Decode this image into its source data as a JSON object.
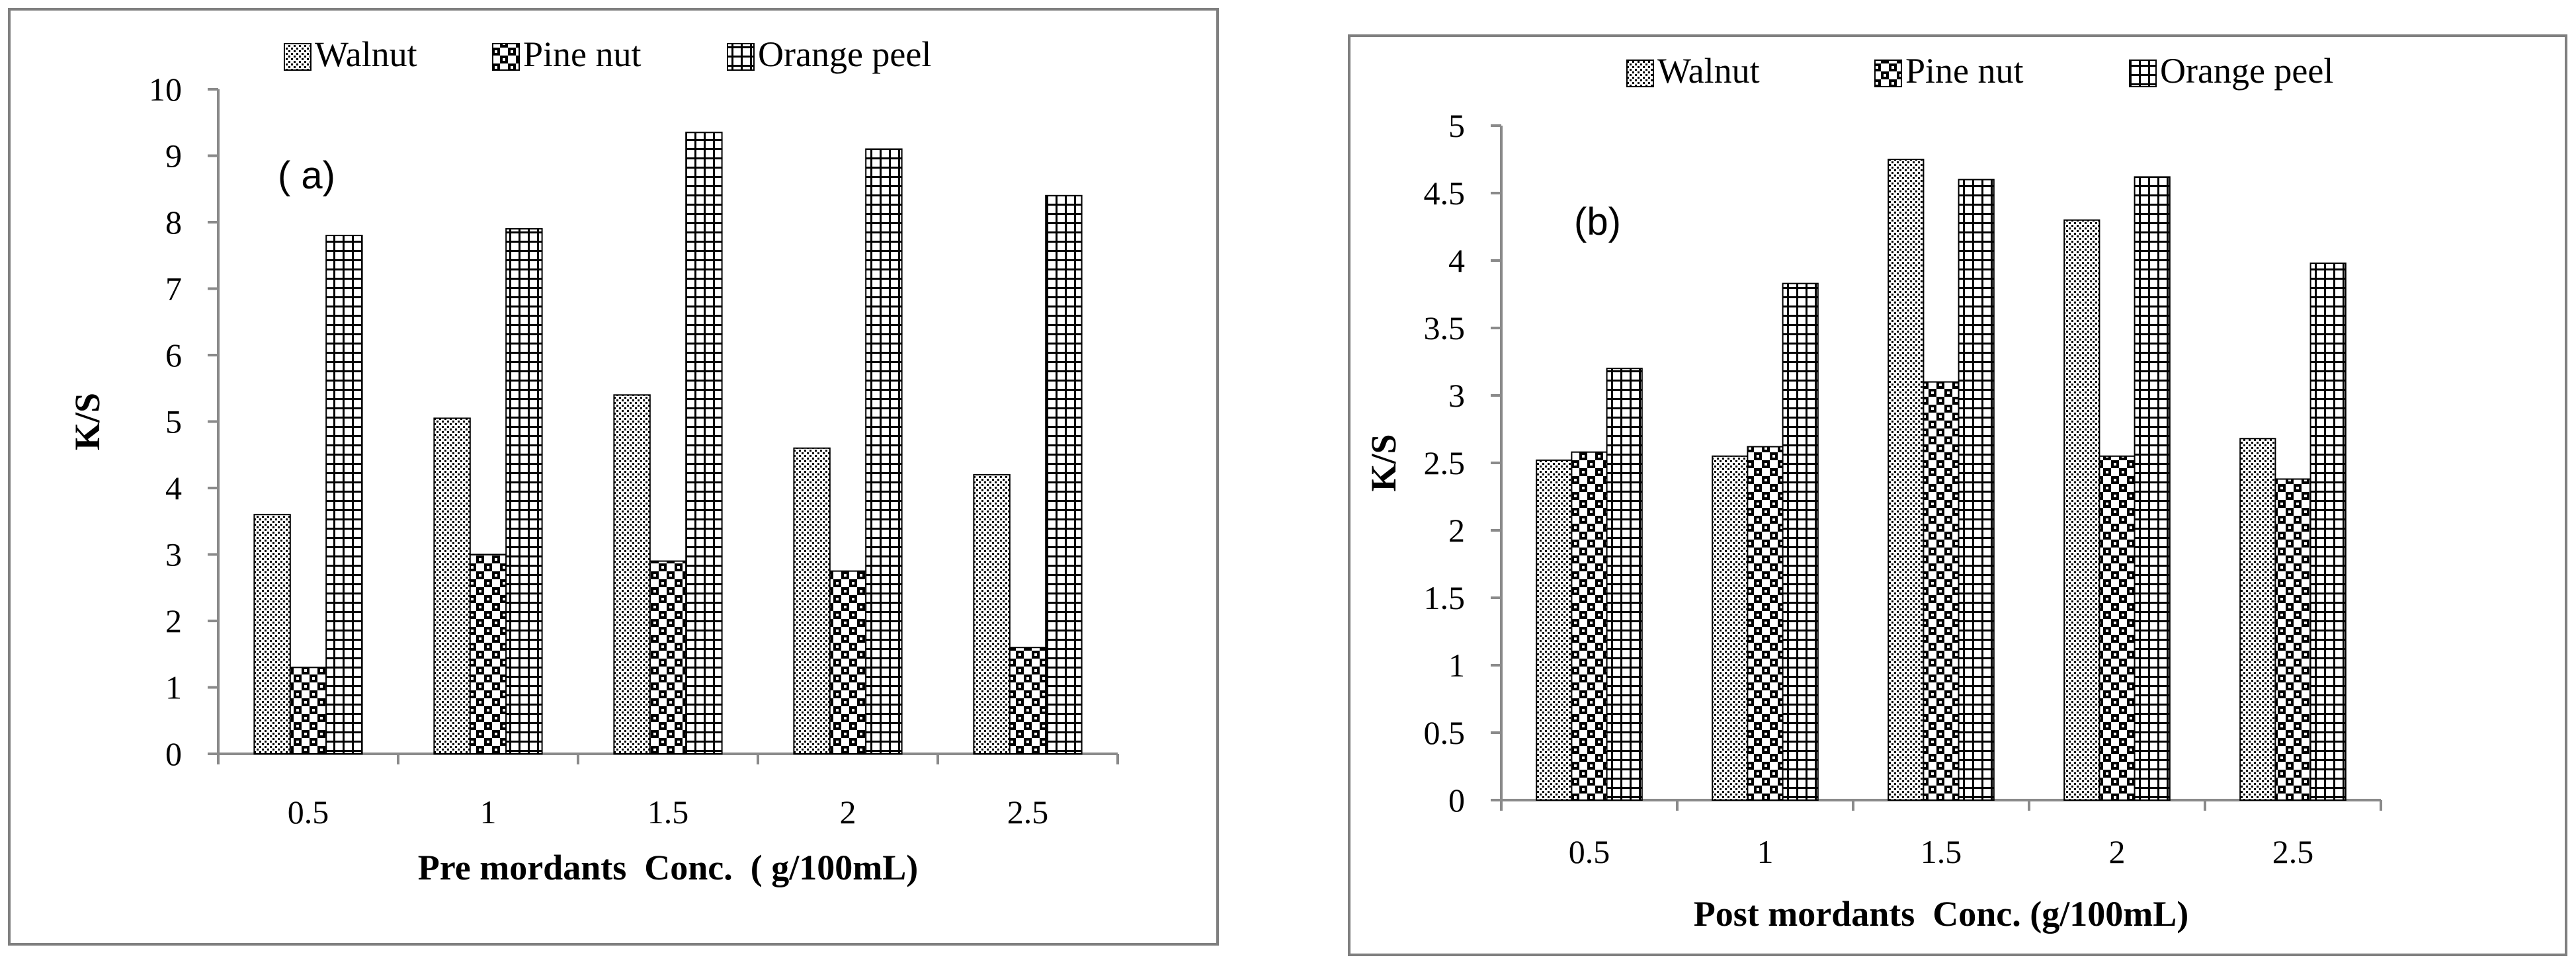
{
  "chart_data": [
    {
      "type": "bar",
      "panel_label": "( a)",
      "categories": [
        "0.5",
        "1",
        "1.5",
        "2",
        "2.5"
      ],
      "series": [
        {
          "name": "Walnut",
          "values": [
            3.6,
            5.05,
            5.4,
            4.6,
            4.2
          ]
        },
        {
          "name": "Pine nut",
          "values": [
            1.3,
            3.0,
            2.9,
            2.75,
            1.6
          ]
        },
        {
          "name": "Orange peel",
          "values": [
            7.8,
            7.9,
            9.35,
            9.1,
            8.4
          ]
        }
      ],
      "xlabel": "Pre mordants  Conc.  ( g/100mL)",
      "ylabel": "K/S",
      "ylim": [
        0,
        10
      ],
      "yticks": [
        "0",
        "1",
        "2",
        "3",
        "4",
        "5",
        "6",
        "7",
        "8",
        "9",
        "10"
      ],
      "legend_position": "top"
    },
    {
      "type": "bar",
      "panel_label": "(b)",
      "categories": [
        "0.5",
        "1",
        "1.5",
        "2",
        "2.5"
      ],
      "series": [
        {
          "name": "Walnut",
          "values": [
            2.52,
            2.55,
            4.75,
            4.3,
            2.68
          ]
        },
        {
          "name": "Pine nut",
          "values": [
            2.58,
            2.62,
            3.1,
            2.55,
            2.38
          ]
        },
        {
          "name": "Orange peel",
          "values": [
            3.2,
            3.83,
            4.6,
            4.62,
            3.98
          ]
        }
      ],
      "xlabel": "Post mordants  Conc. (g/100mL)",
      "ylabel": "K/S",
      "ylim": [
        0,
        5
      ],
      "yticks": [
        "0",
        "0.5",
        "1",
        "1.5",
        "2",
        "2.5",
        "3",
        "3.5",
        "4",
        "4.5",
        "5"
      ],
      "legend_position": "top"
    }
  ]
}
